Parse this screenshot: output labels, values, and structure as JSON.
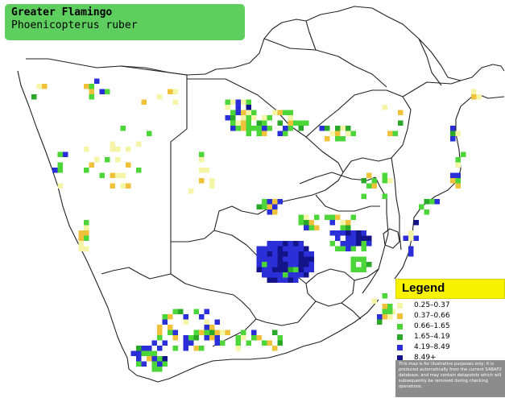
{
  "title": {
    "common_name": "Greater Flamingo",
    "scientific_name": "Phoenicopterus ruber"
  },
  "map": {
    "region": "Southern Africa",
    "border_color": "#111111",
    "background_color": "#ffffff"
  },
  "legend": {
    "title": "Legend",
    "header_color": "#f7f200",
    "items": [
      {
        "label": "0.25–0.37",
        "color": "#f5f5a8"
      },
      {
        "label": "0.37–0.66",
        "color": "#f0c23c"
      },
      {
        "label": "0.66–1.65",
        "color": "#4cd639"
      },
      {
        "label": "1.65–4.19",
        "color": "#29a829"
      },
      {
        "label": "4.19–8.49",
        "color": "#2b2fd8"
      },
      {
        "label": "8.49+",
        "color": "#14148a"
      }
    ],
    "disclaimer": "This map is for illustrative purposes only; it is produced automatically from the current SABAP2 database, and may contain datapoints which will subsequently be removed during checking operations."
  }
}
